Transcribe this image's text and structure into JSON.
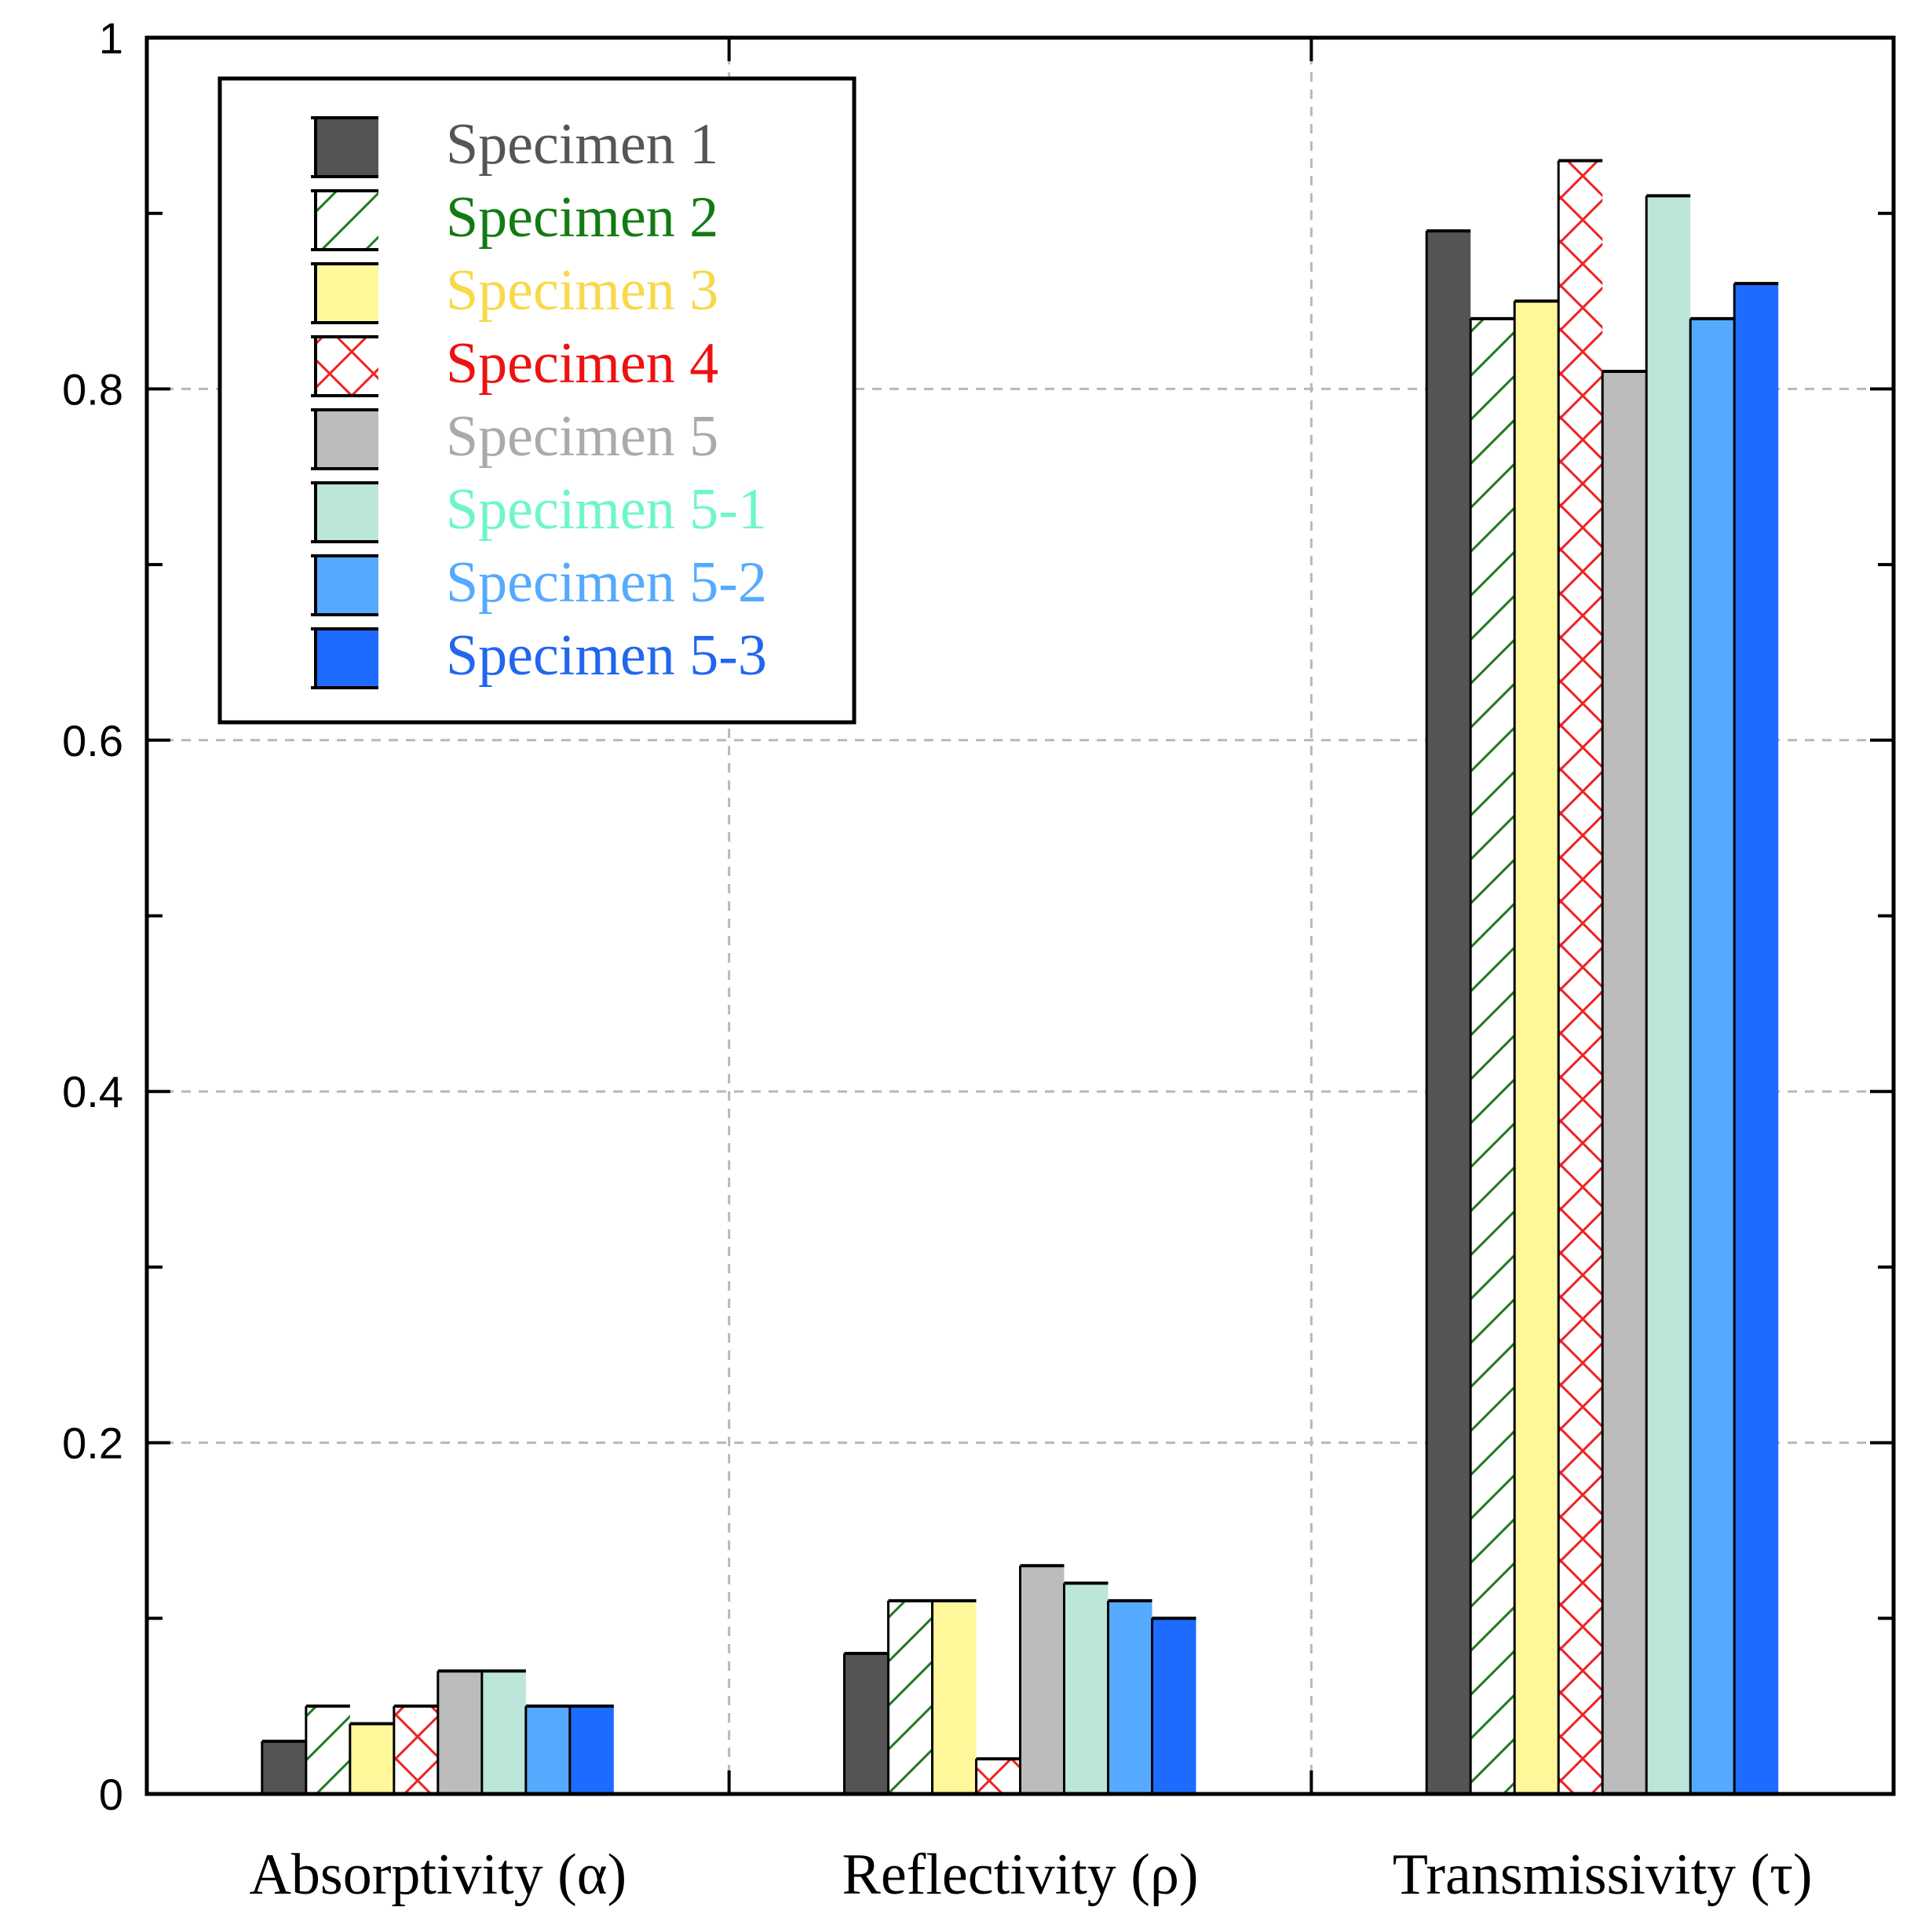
{
  "chart_data": {
    "type": "bar",
    "title": "",
    "xlabel": "",
    "ylabel": "",
    "categories": [
      "Absorptivity (α)",
      "Reflectivity (ρ)",
      "Transmissivity (τ)"
    ],
    "ylim": [
      0,
      1
    ],
    "yticks": [
      "0",
      "0.2",
      "0.4",
      "0.6",
      "0.8",
      "1"
    ],
    "grid": true,
    "legend_position": "top-left",
    "series": [
      {
        "name": "Specimen 1",
        "color": "#545454",
        "pattern": "solid",
        "label_color": "#555555",
        "values": [
          0.03,
          0.08,
          0.89
        ]
      },
      {
        "name": "Specimen 2",
        "color": "#ffffff",
        "pattern": "diagonal-hatch-green",
        "hatch_color": "#1f7a1f",
        "label_color": "#137a13",
        "values": [
          0.05,
          0.11,
          0.84
        ]
      },
      {
        "name": "Specimen 3",
        "color": "#fff89a",
        "pattern": "solid",
        "label_color": "#f7d94a",
        "values": [
          0.04,
          0.11,
          0.85
        ]
      },
      {
        "name": "Specimen 4",
        "color": "#ffffff",
        "pattern": "crosshatch-red",
        "hatch_color": "#ee2222",
        "label_color": "#ee1111",
        "values": [
          0.05,
          0.02,
          0.93
        ]
      },
      {
        "name": "Specimen 5",
        "color": "#bcbcbc",
        "pattern": "solid",
        "label_color": "#aaaaaa",
        "values": [
          0.07,
          0.13,
          0.81
        ]
      },
      {
        "name": "Specimen 5-1",
        "color": "#bde6da",
        "pattern": "solid",
        "label_color": "#6ff5cc",
        "values": [
          0.07,
          0.12,
          0.91
        ]
      },
      {
        "name": "Specimen 5-2",
        "color": "#55aaff",
        "pattern": "solid",
        "label_color": "#55aaff",
        "values": [
          0.05,
          0.11,
          0.84
        ]
      },
      {
        "name": "Specimen 5-3",
        "color": "#1e6bff",
        "pattern": "solid",
        "label_color": "#2266ee",
        "values": [
          0.05,
          0.1,
          0.86
        ]
      }
    ]
  }
}
